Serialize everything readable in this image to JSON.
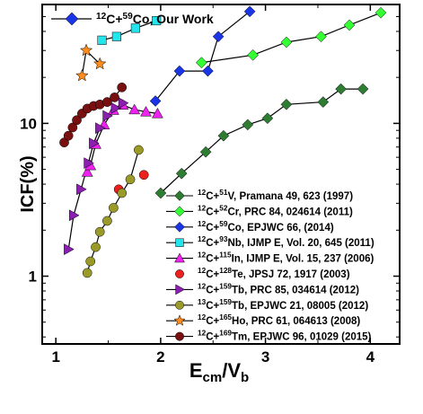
{
  "chart_data": {
    "type": "scatter",
    "title": "",
    "xlabel": "E_cm/V_b",
    "ylabel": "ICF(%)",
    "xlim": [
      0.87,
      4.28
    ],
    "ylim": [
      0.36,
      60
    ],
    "yscale": "log",
    "xticks": [
      1,
      2,
      3,
      4
    ],
    "yticks": [
      1,
      10
    ],
    "legend_placement": "inside",
    "series": [
      {
        "name": "12C+51V, Pramana 49, 623 (1997)",
        "label": {
          "sup1": "12",
          "a": "C+",
          "sup2": "51",
          "b": "V, Pramana 49, 623 (1997)"
        },
        "color": "#2e7d32",
        "marker": "diamond",
        "line": true,
        "x": [
          2.0,
          2.2,
          2.43,
          2.6,
          2.83,
          3.02,
          3.2,
          3.55,
          3.72,
          3.93
        ],
        "y": [
          3.5,
          4.7,
          6.5,
          8.3,
          9.8,
          10.8,
          13.3,
          13.8,
          16.8,
          16.8
        ]
      },
      {
        "name": "12C+52Cr, PRC 84, 024614 (2011)",
        "label": {
          "sup1": "12",
          "a": "C+",
          "sup2": "52",
          "b": "Cr, PRC 84, 024614 (2011)"
        },
        "color": "#33ff33",
        "marker": "diamond",
        "line": true,
        "x": [
          2.39,
          2.88,
          3.2,
          3.53,
          3.8,
          4.1
        ],
        "y": [
          25,
          28,
          34,
          37,
          44,
          53
        ]
      },
      {
        "name": "12C+59Co, EPJWC 66, (2014)",
        "label": {
          "sup1": "12",
          "a": "C+",
          "sup2": "59",
          "b": "Co, EPJWC 66, (2014)"
        },
        "color": "#1a35e6",
        "marker": "diamond",
        "line": true,
        "x": [
          1.95,
          2.18,
          2.45,
          2.55,
          2.85
        ],
        "y": [
          14,
          22,
          22,
          37,
          54
        ]
      },
      {
        "name": "12C+93Nb, IJMP E, Vol. 20, 645 (2011)",
        "label": {
          "sup1": "12",
          "a": "C+",
          "sup2": "93",
          "b": "Nb, IJMP E, Vol. 20, 645 (2011)"
        },
        "color": "#22e5ee",
        "marker": "square",
        "line": true,
        "x": [
          1.44,
          1.58,
          1.76,
          1.96
        ],
        "y": [
          35,
          37,
          42,
          47
        ]
      },
      {
        "name": "12C+115In, IJMP E, Vol. 15, 237 (2006)",
        "label": {
          "sup1": "12",
          "a": "C+",
          "sup2": "115",
          "b": "In, IJMP E, Vol. 15, 237 (2006)"
        },
        "color": "#ee22ee",
        "marker": "triangle-up",
        "line": true,
        "x": [
          1.3,
          1.33,
          1.38,
          1.46,
          1.55,
          1.64,
          1.75,
          1.86,
          1.97
        ],
        "y": [
          4.8,
          5.3,
          7.3,
          9.8,
          12.2,
          13.2,
          12.3,
          11.9,
          11.6
        ]
      },
      {
        "name": "12C+128Te, JPSJ 72, 1917 (2003)",
        "label": {
          "sup1": "12",
          "a": "C+",
          "sup2": "128",
          "b": "Te, JPSJ 72, 1917 (2003)"
        },
        "color": "#ee1f1f",
        "marker": "circle",
        "line": false,
        "x": [
          1.6,
          1.84
        ],
        "y": [
          3.7,
          4.6
        ]
      },
      {
        "name": "12C+159Tb, PRC 85, 034614 (2012)",
        "label": {
          "sup1": "12",
          "a": "C+",
          "sup2": "159",
          "b": "Tb, PRC 85, 034614 (2012)"
        },
        "color": "#8b1fb0",
        "marker": "triangle-right",
        "line": true,
        "x": [
          1.12,
          1.17,
          1.24,
          1.31,
          1.36,
          1.42,
          1.49,
          1.57,
          1.64
        ],
        "y": [
          1.5,
          2.5,
          3.7,
          5.5,
          7.4,
          9.3,
          11.2,
          12.6,
          13.6
        ]
      },
      {
        "name": "13C+159Tb, EPJWC 21, 08005 (2012)",
        "label": {
          "sup1": "13",
          "a": "C+",
          "sup2": "159",
          "b": "Tb, EPJWC 21, 08005 (2012)"
        },
        "color": "#9a9a28",
        "marker": "circle",
        "line": true,
        "x": [
          1.3,
          1.33,
          1.38,
          1.42,
          1.49,
          1.55,
          1.63,
          1.71,
          1.79
        ],
        "y": [
          1.05,
          1.25,
          1.55,
          1.95,
          2.3,
          2.8,
          3.5,
          4.3,
          6.7
        ]
      },
      {
        "name": "12C+165Ho, PRC 61, 064613 (2008)",
        "label": {
          "sup1": "12",
          "a": "C+",
          "sup2": "165",
          "b": "Ho, PRC 61, 064613 (2008)"
        },
        "color": "#ff8c1a",
        "marker": "star",
        "line": true,
        "x": [
          1.25,
          1.29,
          1.42
        ],
        "y": [
          20.5,
          30,
          24.5
        ]
      },
      {
        "name": "12C+169Tm, EPJWC 96, 01029 (2015)",
        "label": {
          "sup1": "12",
          "a": "C+",
          "sup2": "169",
          "b": "Tm, EPJWC 96, 01029 (2015)"
        },
        "color": "#7a0f0f",
        "marker": "circle",
        "line": true,
        "x": [
          1.08,
          1.12,
          1.16,
          1.2,
          1.25,
          1.3,
          1.36,
          1.42,
          1.49,
          1.56,
          1.63
        ],
        "y": [
          7.5,
          8.3,
          9.4,
          10.5,
          11.6,
          12.5,
          13.0,
          13.3,
          13.8,
          14.8,
          17.2
        ]
      }
    ],
    "top_legend": {
      "name": "12C+59Co, Our Work",
      "sup1": "12",
      "a": "C+",
      "sup2": "59",
      "b": "Co, Our Work",
      "color": "#1a35e6",
      "marker": "diamond"
    }
  }
}
